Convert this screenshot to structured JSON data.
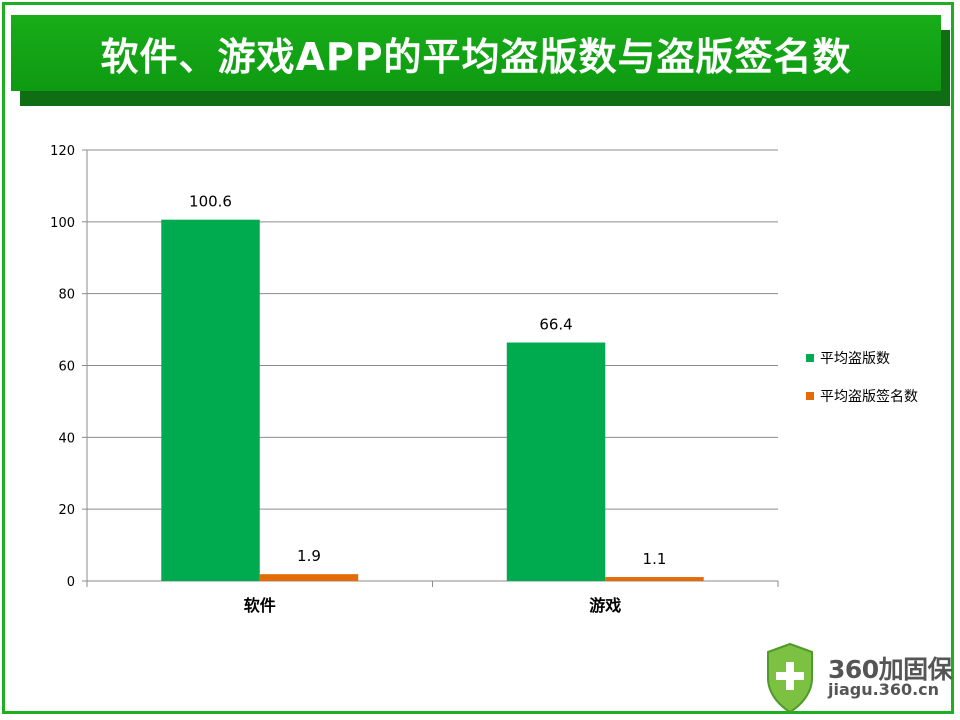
{
  "title": "软件、游戏APP的平均盗版数与盗版签名数",
  "chart_data": {
    "type": "bar",
    "categories": [
      "软件",
      "游戏"
    ],
    "series": [
      {
        "name": "平均盗版数",
        "values": [
          100.6,
          66.4
        ],
        "color": "#00aa4f"
      },
      {
        "name": "平均盗版签名数",
        "values": [
          1.9,
          1.1
        ],
        "color": "#e36c09"
      }
    ],
    "ylim": [
      0,
      120
    ],
    "yticks": [
      0,
      20,
      40,
      60,
      80,
      100,
      120
    ],
    "data_labels": [
      [
        "100.6",
        "66.4"
      ],
      [
        "1.9",
        "1.1"
      ]
    ],
    "grid": true,
    "legend_position": "right"
  },
  "brand": {
    "name": "360加固保",
    "url": "jiagu.360.cn",
    "shield_color": "#7cc142"
  }
}
